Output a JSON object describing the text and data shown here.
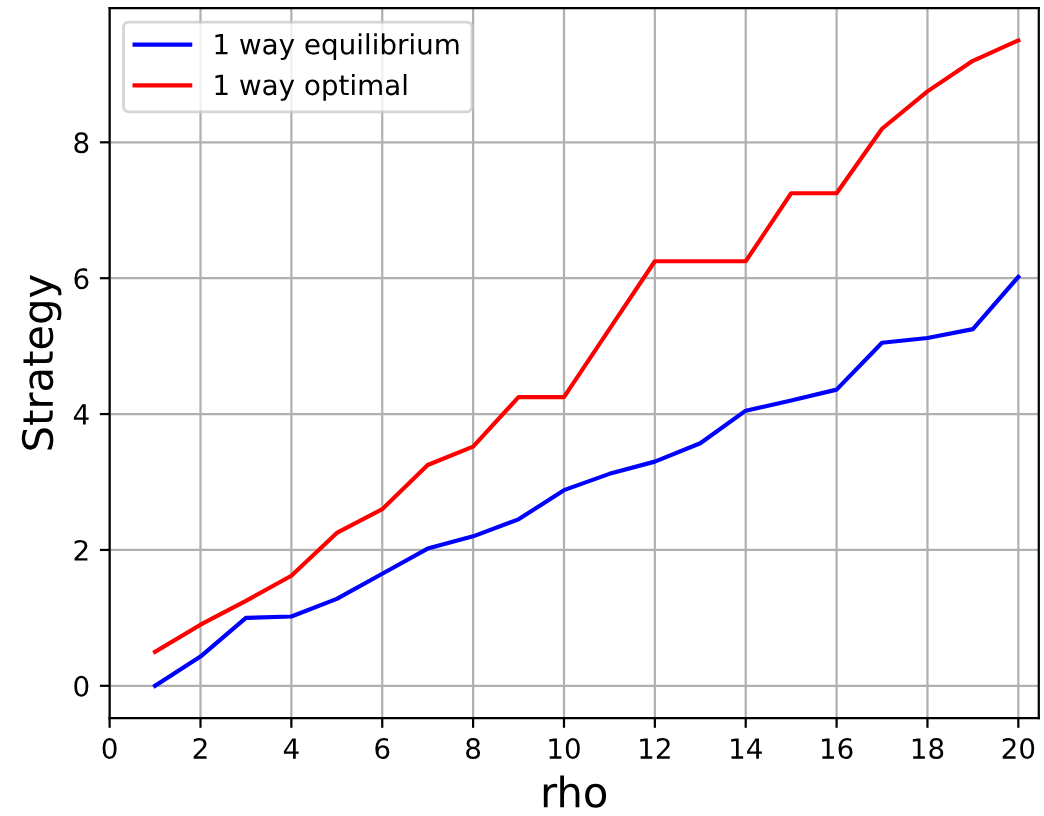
{
  "chart_data": {
    "type": "line",
    "xlabel": "rho",
    "ylabel": "Strategy",
    "x": [
      1,
      2,
      3,
      4,
      5,
      6,
      7,
      8,
      9,
      10,
      11,
      12,
      13,
      14,
      15,
      16,
      17,
      18,
      19,
      20
    ],
    "series": [
      {
        "name": "1 way equilibrium",
        "color": "#0000ff",
        "values": [
          0,
          0.43,
          1.0,
          1.02,
          1.28,
          1.65,
          2.02,
          2.2,
          2.45,
          2.88,
          3.12,
          3.3,
          3.57,
          4.05,
          4.2,
          4.36,
          5.05,
          5.12,
          5.25,
          6.02
        ]
      },
      {
        "name": "1 way optimal",
        "color": "#ff0000",
        "values": [
          0.5,
          0.9,
          1.25,
          1.62,
          2.25,
          2.6,
          3.25,
          3.52,
          4.25,
          4.25,
          5.25,
          6.25,
          6.25,
          6.25,
          7.25,
          7.25,
          8.2,
          8.75,
          9.2,
          9.5
        ]
      }
    ],
    "xlim": [
      0,
      20.45
    ],
    "ylim": [
      -0.475,
      9.975
    ],
    "xticks": [
      0,
      2,
      4,
      6,
      8,
      10,
      12,
      14,
      16,
      18,
      20
    ],
    "yticks": [
      0,
      2,
      4,
      6,
      8
    ],
    "grid": true,
    "legend": "top left",
    "marker": "none",
    "line_style": "solid"
  }
}
